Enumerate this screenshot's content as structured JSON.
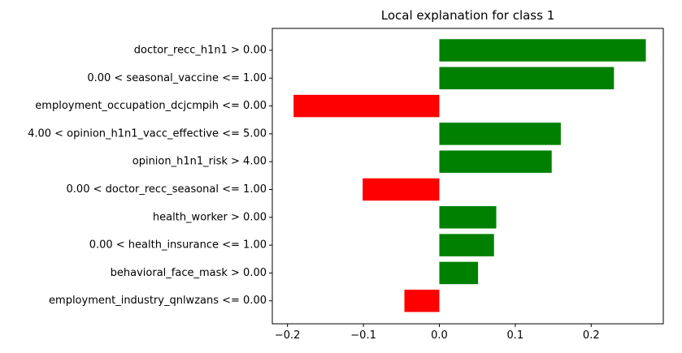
{
  "chart_data": {
    "type": "bar",
    "orientation": "horizontal",
    "title": "Local explanation for class 1",
    "xlabel": "",
    "ylabel": "",
    "grid": false,
    "legend": "none",
    "xlim": [
      -0.22,
      0.295
    ],
    "xticks": [
      -0.2,
      -0.1,
      0.0,
      0.1,
      0.2
    ],
    "xtick_labels": [
      "−0.2",
      "−0.1",
      "0.0",
      "0.1",
      "0.2"
    ],
    "categories": [
      "doctor_recc_h1n1 > 0.00",
      "0.00 < seasonal_vaccine <= 1.00",
      "employment_occupation_dcjcmpih <= 0.00",
      "4.00 < opinion_h1n1_vacc_effective <= 5.00",
      "opinion_h1n1_risk > 4.00",
      "0.00 < doctor_recc_seasonal <= 1.00",
      "health_worker > 0.00",
      "0.00 < health_insurance <= 1.00",
      "behavioral_face_mask > 0.00",
      "employment_industry_qnlwzans <= 0.00"
    ],
    "values": [
      0.272,
      0.23,
      -0.192,
      0.16,
      0.148,
      -0.101,
      0.075,
      0.072,
      0.051,
      -0.046
    ],
    "colors": {
      "positive": "#008000",
      "negative": "#ff0000"
    }
  }
}
